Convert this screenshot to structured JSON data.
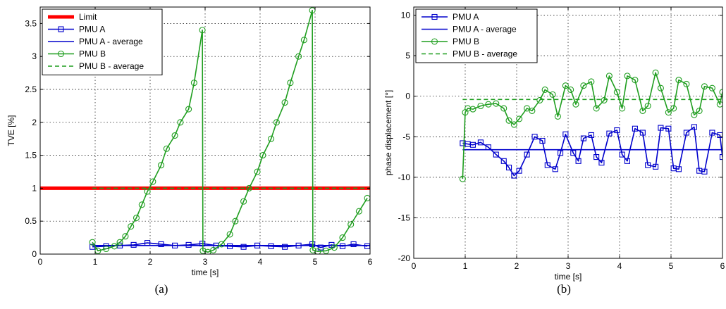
{
  "chart_data": [
    {
      "type": "line",
      "caption": "(a)",
      "xlabel": "time [s]",
      "ylabel": "TVE [%]",
      "xlim": [
        0,
        6
      ],
      "ylim": [
        0,
        3.75
      ],
      "xticks": [
        0,
        1,
        2,
        3,
        4,
        5,
        6
      ],
      "yticks": [
        0,
        0.5,
        1,
        1.5,
        2,
        2.5,
        3,
        3.5
      ],
      "grid": true,
      "legend_position": "top-left",
      "series": [
        {
          "name": "Limit",
          "color": "#ff0000",
          "style": "thick",
          "marker": "none",
          "x": [
            0,
            6
          ],
          "y": [
            1,
            1
          ]
        },
        {
          "name": "PMU A",
          "color": "#0000cc",
          "style": "solid",
          "marker": "square",
          "x": [
            0.95,
            1.2,
            1.45,
            1.7,
            1.95,
            2.2,
            2.45,
            2.7,
            2.95,
            3.2,
            3.45,
            3.7,
            3.95,
            4.2,
            4.45,
            4.7,
            4.95,
            5.1,
            5.3,
            5.5,
            5.7,
            5.95
          ],
          "y": [
            0.11,
            0.12,
            0.13,
            0.14,
            0.17,
            0.15,
            0.13,
            0.14,
            0.16,
            0.13,
            0.12,
            0.11,
            0.13,
            0.12,
            0.11,
            0.13,
            0.15,
            0.1,
            0.14,
            0.12,
            0.15,
            0.12
          ]
        },
        {
          "name": "PMU A - average",
          "color": "#0000cc",
          "style": "solid",
          "marker": "none",
          "x": [
            0.95,
            6
          ],
          "y": [
            0.13,
            0.13
          ]
        },
        {
          "name": "PMU B",
          "color": "#1f9e1f",
          "style": "solid",
          "marker": "circle",
          "x": [
            0.95,
            1.05,
            1.2,
            1.35,
            1.45,
            1.55,
            1.65,
            1.75,
            1.85,
            1.95,
            2.05,
            2.2,
            2.3,
            2.45,
            2.55,
            2.7,
            2.8,
            2.95,
            2.96,
            3.05,
            3.15,
            3.3,
            3.45,
            3.55,
            3.7,
            3.8,
            3.95,
            4.05,
            4.2,
            4.3,
            4.45,
            4.55,
            4.7,
            4.8,
            4.95,
            4.96,
            5.05,
            5.2,
            5.35,
            5.5,
            5.65,
            5.8,
            5.95
          ],
          "y": [
            0.18,
            0.05,
            0.08,
            0.12,
            0.18,
            0.27,
            0.42,
            0.55,
            0.75,
            0.95,
            1.1,
            1.35,
            1.6,
            1.8,
            2.0,
            2.2,
            2.6,
            3.4,
            0.05,
            0.03,
            0.06,
            0.15,
            0.3,
            0.5,
            0.8,
            1.0,
            1.25,
            1.5,
            1.75,
            2.0,
            2.3,
            2.6,
            3.0,
            3.25,
            3.7,
            0.06,
            0.04,
            0.05,
            0.1,
            0.25,
            0.45,
            0.65,
            0.85
          ]
        },
        {
          "name": "PMU B - average",
          "color": "#1f9e1f",
          "style": "dashed",
          "marker": "none",
          "x": [
            0.95,
            6
          ],
          "y": [
            1.0,
            1.0
          ]
        }
      ]
    },
    {
      "type": "line",
      "caption": "(b)",
      "xlabel": "time [s]",
      "ylabel": "phase displacement [°]",
      "xlim": [
        0,
        6
      ],
      "ylim": [
        -20,
        11
      ],
      "xticks": [
        0,
        1,
        2,
        3,
        4,
        5,
        6
      ],
      "yticks": [
        -20,
        -15,
        -10,
        -5,
        0,
        5,
        10
      ],
      "grid": true,
      "legend_position": "top-left",
      "series": [
        {
          "name": "PMU A",
          "color": "#0000cc",
          "style": "solid",
          "marker": "square",
          "x": [
            0.95,
            1.05,
            1.15,
            1.3,
            1.45,
            1.6,
            1.75,
            1.85,
            1.95,
            2.05,
            2.2,
            2.35,
            2.5,
            2.6,
            2.75,
            2.85,
            2.95,
            3.1,
            3.2,
            3.3,
            3.45,
            3.55,
            3.65,
            3.8,
            3.95,
            4.05,
            4.15,
            4.3,
            4.45,
            4.55,
            4.7,
            4.8,
            4.95,
            5.05,
            5.15,
            5.3,
            5.45,
            5.55,
            5.65,
            5.8,
            5.95,
            6.0
          ],
          "y": [
            -5.8,
            -5.9,
            -6.0,
            -5.7,
            -6.3,
            -7.2,
            -8.0,
            -8.8,
            -9.8,
            -9.2,
            -7.2,
            -5.0,
            -5.5,
            -8.5,
            -9.0,
            -7.0,
            -4.7,
            -7.0,
            -8.0,
            -5.2,
            -4.8,
            -7.5,
            -8.2,
            -4.6,
            -4.2,
            -7.2,
            -8.0,
            -4.0,
            -4.5,
            -8.5,
            -8.7,
            -3.9,
            -4.0,
            -8.9,
            -9.0,
            -4.5,
            -3.8,
            -9.2,
            -9.3,
            -4.5,
            -4.8,
            -7.5
          ]
        },
        {
          "name": "PMU A - average",
          "color": "#0000cc",
          "style": "solid",
          "marker": "none",
          "x": [
            0.95,
            6
          ],
          "y": [
            -6.6,
            -6.6
          ]
        },
        {
          "name": "PMU B",
          "color": "#1f9e1f",
          "style": "solid",
          "marker": "circle",
          "x": [
            0.95,
            1.0,
            1.05,
            1.15,
            1.3,
            1.45,
            1.6,
            1.75,
            1.85,
            1.95,
            2.05,
            2.2,
            2.3,
            2.45,
            2.55,
            2.7,
            2.8,
            2.95,
            3.05,
            3.15,
            3.3,
            3.45,
            3.55,
            3.7,
            3.8,
            3.95,
            4.05,
            4.15,
            4.3,
            4.45,
            4.55,
            4.7,
            4.8,
            4.95,
            5.05,
            5.15,
            5.3,
            5.45,
            5.55,
            5.65,
            5.8,
            5.95,
            6.0
          ],
          "y": [
            -10.2,
            -2.0,
            -1.5,
            -1.6,
            -1.2,
            -1.0,
            -0.9,
            -1.5,
            -3.0,
            -3.5,
            -2.8,
            -1.5,
            -1.8,
            -0.5,
            0.8,
            0.2,
            -2.5,
            1.3,
            0.8,
            -1.0,
            1.3,
            1.8,
            -1.5,
            -0.5,
            2.5,
            0.5,
            -1.5,
            2.5,
            2.0,
            -1.8,
            -1.2,
            2.9,
            1.0,
            -2.0,
            -1.5,
            2.0,
            1.5,
            -2.3,
            -1.8,
            1.2,
            1.0,
            -1.0,
            0.5
          ]
        },
        {
          "name": "PMU B - average",
          "color": "#1f9e1f",
          "style": "dashed",
          "marker": "none",
          "x": [
            0.95,
            6
          ],
          "y": [
            -0.4,
            -0.4
          ]
        }
      ]
    }
  ]
}
